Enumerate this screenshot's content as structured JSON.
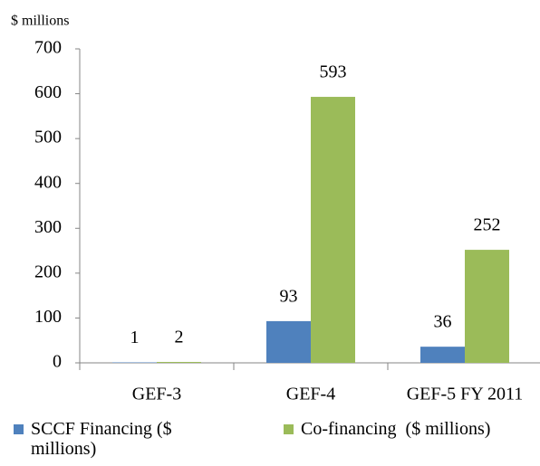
{
  "chart_data": {
    "type": "bar",
    "y_axis_label": "$ millions",
    "categories": [
      "GEF-3",
      "GEF-4",
      "GEF-5 FY 2011"
    ],
    "series": [
      {
        "name": "SCCF Financing ($ millions)",
        "color": "#4f81bd",
        "values": [
          1,
          93,
          36
        ]
      },
      {
        "name": "Co-financing  ($ millions)",
        "color": "#9bbb59",
        "values": [
          2,
          593,
          252
        ]
      }
    ],
    "ylim": [
      0,
      700
    ],
    "yticks": [
      0,
      100,
      200,
      300,
      400,
      500,
      600,
      700
    ],
    "grid": false,
    "legend": "bottom"
  }
}
